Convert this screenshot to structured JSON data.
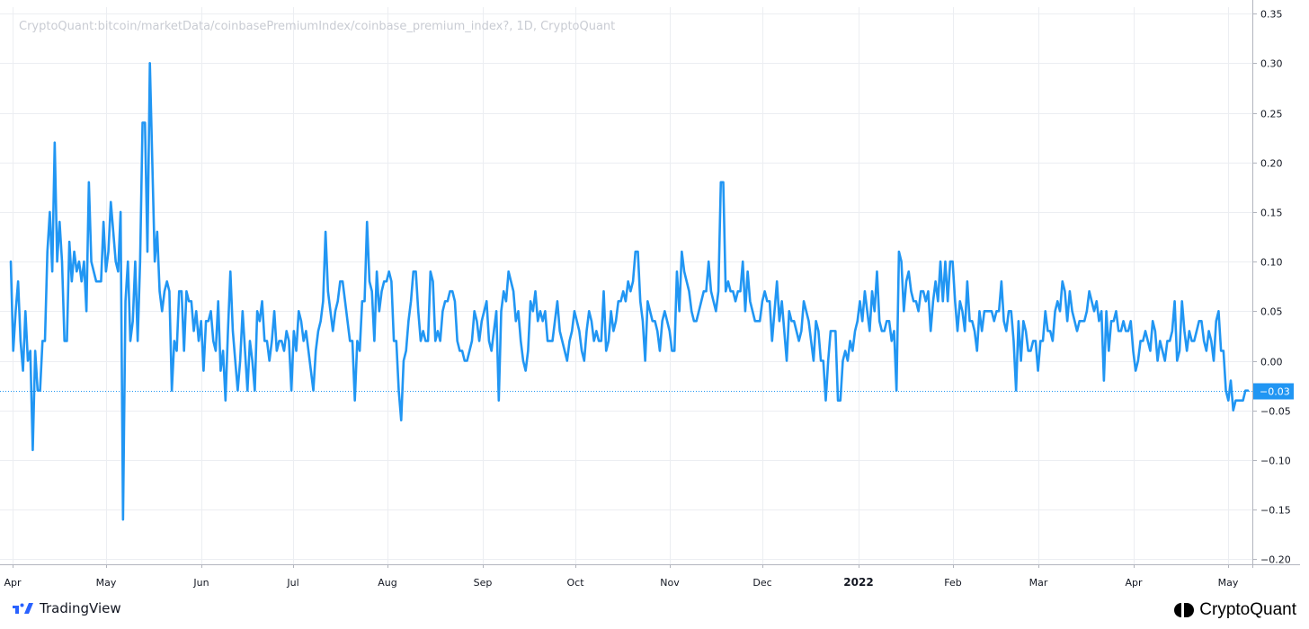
{
  "header": {
    "source_label": "CryptoQuant:bitcoin/marketData/coinbasePremiumIndex/coinbase_premium_index?, 1D, CryptoQuant"
  },
  "footer": {
    "tradingview_label": "TradingView",
    "cryptoquant_label": "CryptoQuant"
  },
  "chart_data": {
    "type": "line",
    "ylim": [
      -0.22,
      0.36
    ],
    "x_ticks": [
      "Apr",
      "May",
      "Jun",
      "Jul",
      "Aug",
      "Sep",
      "Oct",
      "Nov",
      "Dec",
      "2022",
      "Feb",
      "Mar",
      "Apr",
      "May"
    ],
    "y_ticks": [
      "0.35",
      "0.30",
      "0.25",
      "0.20",
      "0.15",
      "0.10",
      "0.05",
      "0.00",
      "−0.05",
      "−0.10",
      "−0.15",
      "−0.20"
    ],
    "y_tick_values": [
      0.35,
      0.3,
      0.25,
      0.2,
      0.15,
      0.1,
      0.05,
      0.0,
      -0.05,
      -0.1,
      -0.15,
      -0.2
    ],
    "last_value": -0.03,
    "last_value_label": "−0.03",
    "line_color": "#2196f3",
    "grid": true,
    "series": [
      {
        "values": [
          0.1,
          0.01,
          0.05,
          0.08,
          0.02,
          -0.01,
          0.05,
          0.0,
          0.01,
          -0.09,
          0.01,
          -0.03,
          -0.03,
          0.02,
          0.02,
          0.11,
          0.15,
          0.09,
          0.22,
          0.1,
          0.14,
          0.1,
          0.02,
          0.02,
          0.12,
          0.08,
          0.11,
          0.09,
          0.1,
          0.08,
          0.1,
          0.05,
          0.18,
          0.1,
          0.09,
          0.08,
          0.08,
          0.08,
          0.14,
          0.09,
          0.11,
          0.16,
          0.13,
          0.1,
          0.09,
          0.15,
          -0.16,
          0.06,
          0.1,
          0.02,
          0.04,
          0.1,
          0.02,
          0.1,
          0.24,
          0.24,
          0.11,
          0.3,
          0.2,
          0.1,
          0.13,
          0.07,
          0.05,
          0.07,
          0.08,
          0.07,
          -0.03,
          0.02,
          0.01,
          0.07,
          0.07,
          0.01,
          0.07,
          0.06,
          0.06,
          0.03,
          0.05,
          0.02,
          0.04,
          -0.01,
          0.04,
          0.04,
          0.05,
          0.02,
          0.01,
          0.06,
          -0.01,
          0.01,
          -0.04,
          0.03,
          0.09,
          0.03,
          0.0,
          -0.03,
          0.0,
          0.05,
          0.01,
          -0.03,
          0.02,
          0.0,
          -0.03,
          0.05,
          0.04,
          0.06,
          0.02,
          0.02,
          0.0,
          0.02,
          0.05,
          0.01,
          0.02,
          0.02,
          0.01,
          0.03,
          0.02,
          -0.03,
          0.03,
          0.01,
          0.05,
          0.04,
          0.02,
          0.03,
          0.01,
          -0.01,
          -0.03,
          0.01,
          0.03,
          0.04,
          0.06,
          0.13,
          0.07,
          0.05,
          0.03,
          0.05,
          0.06,
          0.08,
          0.08,
          0.06,
          0.04,
          0.02,
          0.02,
          -0.04,
          0.02,
          0.01,
          0.06,
          0.06,
          0.14,
          0.08,
          0.07,
          0.02,
          0.09,
          0.05,
          0.07,
          0.08,
          0.08,
          0.09,
          0.08,
          0.02,
          0.02,
          -0.03,
          -0.06,
          0.0,
          0.01,
          0.04,
          0.06,
          0.09,
          0.09,
          0.05,
          0.02,
          0.03,
          0.02,
          0.02,
          0.09,
          0.08,
          0.02,
          0.03,
          0.02,
          0.05,
          0.06,
          0.06,
          0.07,
          0.07,
          0.06,
          0.02,
          0.01,
          0.01,
          0.0,
          0.0,
          0.01,
          0.02,
          0.05,
          0.04,
          0.02,
          0.04,
          0.05,
          0.06,
          0.02,
          0.01,
          0.03,
          0.05,
          -0.04,
          0.05,
          0.07,
          0.06,
          0.09,
          0.08,
          0.07,
          0.04,
          0.05,
          0.02,
          0.0,
          -0.01,
          0.01,
          0.06,
          0.05,
          0.07,
          0.04,
          0.05,
          0.04,
          0.05,
          0.02,
          0.02,
          0.02,
          0.04,
          0.06,
          0.03,
          0.02,
          0.01,
          0.0,
          0.02,
          0.03,
          0.05,
          0.04,
          0.03,
          0.01,
          0.0,
          0.03,
          0.05,
          0.04,
          0.02,
          0.03,
          0.02,
          0.02,
          0.07,
          0.01,
          0.02,
          0.05,
          0.03,
          0.04,
          0.06,
          0.06,
          0.07,
          0.06,
          0.08,
          0.07,
          0.08,
          0.11,
          0.11,
          0.06,
          0.04,
          0.0,
          0.06,
          0.05,
          0.04,
          0.04,
          0.03,
          0.01,
          0.04,
          0.05,
          0.04,
          0.03,
          0.01,
          0.01,
          0.09,
          0.05,
          0.11,
          0.09,
          0.08,
          0.07,
          0.05,
          0.04,
          0.04,
          0.05,
          0.06,
          0.07,
          0.07,
          0.1,
          0.07,
          0.06,
          0.05,
          0.07,
          0.18,
          0.18,
          0.07,
          0.08,
          0.07,
          0.07,
          0.06,
          0.07,
          0.07,
          0.1,
          0.05,
          0.09,
          0.06,
          0.05,
          0.04,
          0.04,
          0.04,
          0.06,
          0.07,
          0.06,
          0.06,
          0.02,
          0.05,
          0.08,
          0.04,
          0.06,
          0.03,
          0.0,
          0.05,
          0.04,
          0.04,
          0.03,
          0.02,
          0.03,
          0.06,
          0.05,
          0.04,
          0.02,
          0.0,
          0.04,
          0.03,
          0.0,
          0.0,
          -0.04,
          0.0,
          0.03,
          0.03,
          0.03,
          -0.04,
          -0.04,
          0.0,
          0.01,
          0.0,
          0.02,
          0.01,
          0.03,
          0.04,
          0.06,
          0.04,
          0.07,
          0.05,
          0.03,
          0.07,
          0.05,
          0.09,
          0.04,
          0.03,
          0.03,
          0.04,
          0.04,
          0.02,
          0.03,
          -0.03,
          0.11,
          0.1,
          0.05,
          0.08,
          0.09,
          0.07,
          0.06,
          0.06,
          0.05,
          0.07,
          0.07,
          0.06,
          0.07,
          0.03,
          0.06,
          0.08,
          0.06,
          0.1,
          0.06,
          0.1,
          0.06,
          0.1,
          0.1,
          0.06,
          0.03,
          0.06,
          0.05,
          0.03,
          0.08,
          0.04,
          0.04,
          0.03,
          0.01,
          0.05,
          0.03,
          0.05,
          0.05,
          0.05,
          0.05,
          0.04,
          0.05,
          0.05,
          0.08,
          0.04,
          0.03,
          0.05,
          0.05,
          0.02,
          -0.03,
          0.04,
          0.0,
          0.04,
          0.03,
          0.01,
          0.01,
          0.02,
          0.02,
          -0.01,
          0.02,
          0.02,
          0.05,
          0.03,
          0.03,
          0.02,
          0.05,
          0.06,
          0.05,
          0.08,
          0.07,
          0.04,
          0.07,
          0.05,
          0.04,
          0.03,
          0.04,
          0.04,
          0.04,
          0.05,
          0.07,
          0.06,
          0.05,
          0.06,
          0.04,
          0.05,
          -0.02,
          0.05,
          0.01,
          0.04,
          0.04,
          0.05,
          0.03,
          0.03,
          0.04,
          0.03,
          0.03,
          0.04,
          0.01,
          -0.01,
          0.0,
          0.02,
          0.02,
          0.03,
          0.02,
          0.01,
          0.04,
          0.03,
          0.0,
          0.02,
          0.01,
          0.0,
          0.02,
          0.02,
          0.03,
          0.06,
          0.0,
          0.01,
          0.06,
          0.03,
          0.01,
          0.03,
          0.02,
          0.02,
          0.03,
          0.04,
          0.04,
          0.02,
          0.01,
          0.03,
          0.02,
          0.0,
          0.04,
          0.05,
          0.01,
          0.01,
          -0.03,
          -0.04,
          -0.02,
          -0.05,
          -0.04,
          -0.04,
          -0.04,
          -0.04,
          -0.03,
          -0.03
        ]
      }
    ]
  }
}
